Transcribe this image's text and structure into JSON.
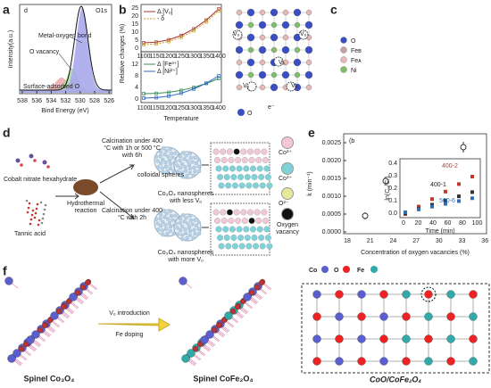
{
  "panels": {
    "a": {
      "label": "a",
      "inner_label": "d",
      "spectrum": "O1s",
      "peaks": [
        "Metal-oxygen bond",
        "O vacancy",
        "Surface-adsorbed O"
      ],
      "y_label": "Intensity(a.u.)",
      "x_label": "Bind Energy (eV)",
      "x_ticks": [
        "538",
        "536",
        "534",
        "532",
        "530",
        "528",
        "526"
      ]
    },
    "b": {
      "label": "b",
      "legend_top": [
        "Δ [Vₒ]",
        "- δ"
      ],
      "legend_bottom": [
        "Δ [Fe³⁺]",
        "Δ [Ni²⁺]"
      ],
      "y_label": "Relative changes (%)",
      "x_label": "Temperature",
      "x_ticks": [
        "1100",
        "1150",
        "1200",
        "1250",
        "1300",
        "1350",
        "1400"
      ],
      "y_ticks_top": [
        "25",
        "20",
        "15",
        "10",
        "5",
        "0"
      ],
      "y_ticks_bottom": [
        "12",
        "8",
        "4",
        "0"
      ]
    },
    "c": {
      "label": "c",
      "legend": [
        "O",
        "Feʙ",
        "Feᴀ",
        "Ni"
      ],
      "vacancy": "Vₒ",
      "electron": "e⁻",
      "atom": "O"
    },
    "d": {
      "label": "d",
      "precursors": [
        "Cobalt nitrate hexahydrate",
        "Tannic acid"
      ],
      "reaction": "Hydrothermal reaction",
      "intermediate": "colloidal spheres",
      "route_1": "Calcination under 400 °C with 1h or 500 °C with 6h",
      "product_1": "Co₃O₄ nanospheres with less Vₒ",
      "route_2": "Calcination under 400 °C with 2h",
      "product_2": "Co₃O₄ nanospheres with more Vₒ",
      "legend": [
        "Co²⁺",
        "Co³⁺",
        "O²⁻",
        "Oxygen vacancy"
      ]
    },
    "e": {
      "label": "e",
      "tag": "(b",
      "y_label": "k (min⁻¹)",
      "x_label": "Concentration of oxygen vacancies (%)",
      "y_ticks": [
        "0.0025",
        "0.0020",
        "0.0015",
        "0.0010",
        "0.0005",
        "0.0000"
      ],
      "x_ticks": [
        "18",
        "21",
        "24",
        "27",
        "30",
        "33",
        "36"
      ],
      "inset": {
        "y_label": "ln(C₀/Cₜ)",
        "x_label": "Time (min)",
        "y_ticks": [
          "0.4",
          "0.3",
          "0.2",
          "0.1",
          "0.0"
        ],
        "x_ticks": [
          "0",
          "20",
          "40",
          "60",
          "80",
          "100"
        ],
        "series": [
          "400-2",
          "400-1",
          "500-6"
        ]
      }
    },
    "f": {
      "label": "f",
      "left": "Spinel Co₃O₄",
      "step_1": "Vₒ introduction",
      "step_2": "Fe doping",
      "middle": "Spinel CoFe₂O₄",
      "right": "CoO/CoFe₂O₄",
      "legend": [
        "Co",
        "O",
        "Fe"
      ]
    }
  }
}
